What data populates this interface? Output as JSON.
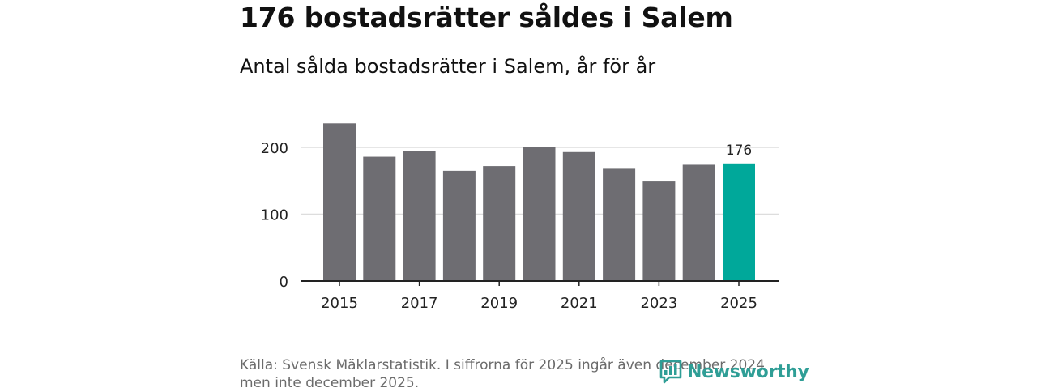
{
  "header": {
    "title": "176 bostadsrätter såldes i Salem",
    "subtitle": "Antal sålda bostadsrätter i Salem, år för år"
  },
  "footer": {
    "source_line1": "Källa: Svensk Mäklarstatistik. I siffrorna för 2025 ingår även december 2024",
    "source_line2": "men inte december 2025.",
    "logo_text": "Newsworthy"
  },
  "colors": {
    "bar": "#6e6d72",
    "highlight": "#00a89a",
    "gridline": "#dddddd",
    "axis": "#222222"
  },
  "chart_data": {
    "type": "bar",
    "title": "Antal sålda bostadsrätter i Salem, år för år",
    "xlabel": "",
    "ylabel": "",
    "categories": [
      "2015",
      "2016",
      "2017",
      "2018",
      "2019",
      "2020",
      "2021",
      "2022",
      "2023",
      "2024",
      "2025"
    ],
    "values": [
      236,
      186,
      194,
      165,
      172,
      200,
      193,
      168,
      149,
      174,
      176
    ],
    "x_tick_labels": [
      "2015",
      "2017",
      "2019",
      "2021",
      "2023",
      "2025"
    ],
    "y_ticks": [
      0,
      100,
      200
    ],
    "ylim": [
      0,
      250
    ],
    "highlight_category": "2025",
    "data_labels": [
      {
        "category": "2025",
        "text": "176"
      }
    ],
    "grid": true
  }
}
